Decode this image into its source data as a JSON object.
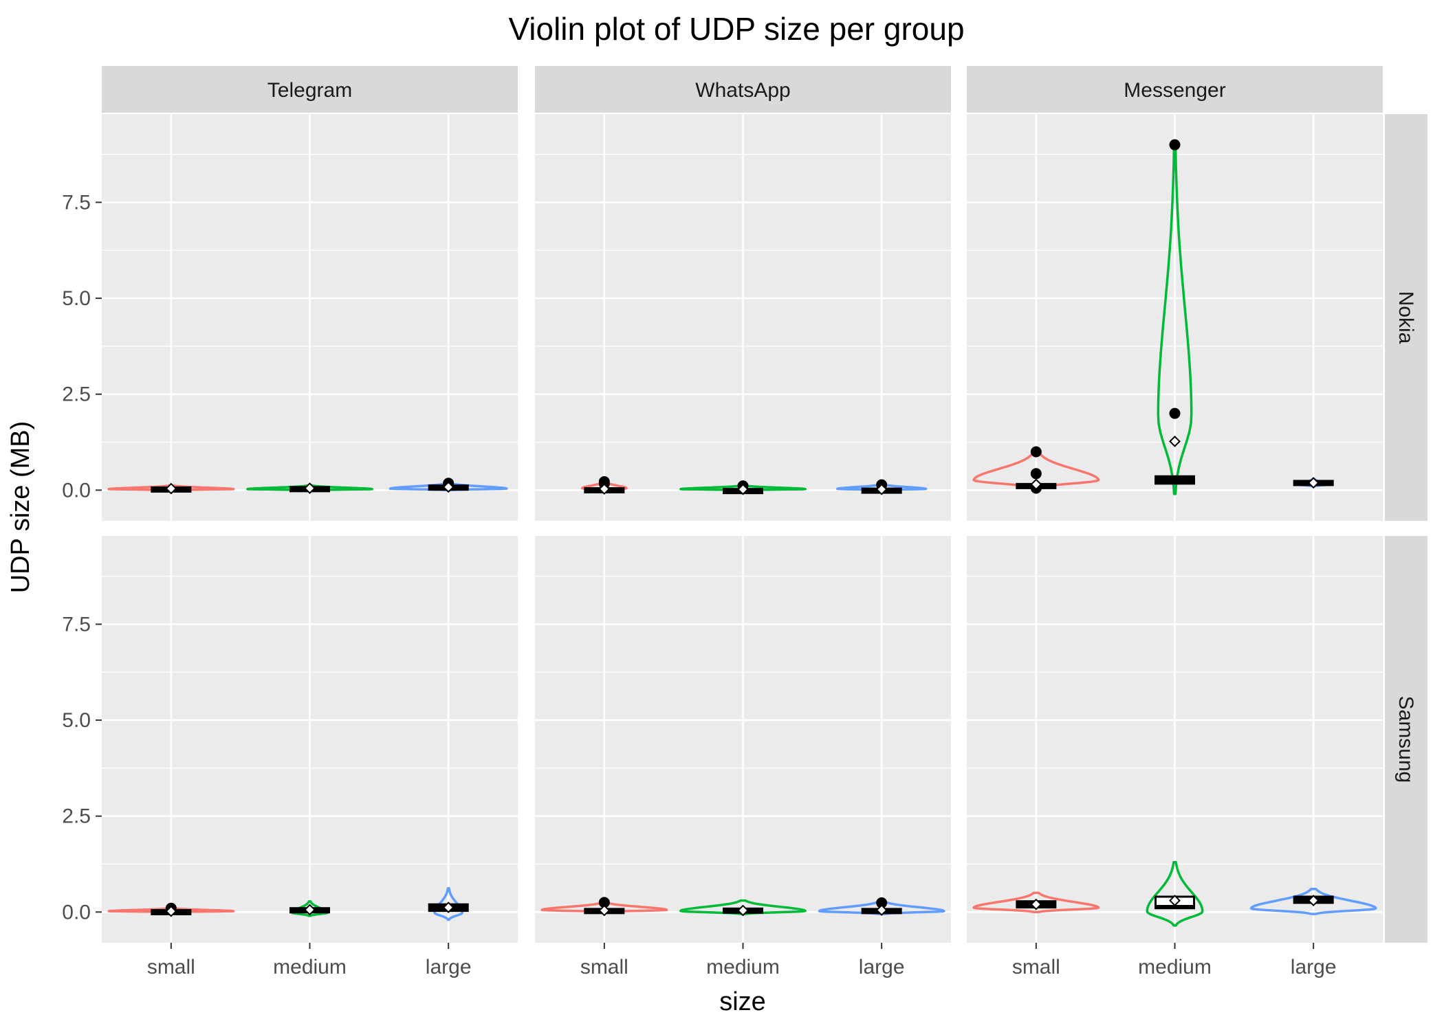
{
  "chart_data": {
    "type": "violin",
    "title": "Violin plot of UDP size per group",
    "xlabel": "size",
    "ylabel": "UDP size (MB)",
    "categories": [
      "small",
      "medium",
      "large"
    ],
    "ylim": [
      -0.8,
      9.8
    ],
    "yticks": [
      0.0,
      2.5,
      5.0,
      7.5
    ],
    "ytick_labels": [
      "0.0",
      "2.5",
      "5.0",
      "7.5"
    ],
    "grid": true,
    "facet_cols": [
      "Telegram",
      "WhatsApp",
      "Messenger"
    ],
    "facet_rows": [
      "Nokia",
      "Samsung"
    ],
    "colors": {
      "small": "#F8766D",
      "medium": "#00BA38",
      "large": "#619CFF",
      "panel_bg": "#EBEBEB",
      "strip_bg": "#D9D9D9",
      "grid": "#FFFFFF"
    },
    "panels": [
      {
        "app": "Telegram",
        "device": "Nokia",
        "groups": [
          {
            "category": "small",
            "violin_min": 0.0,
            "violin_max": 0.12,
            "violin_width": 0.45,
            "q1": 0.01,
            "median": 0.03,
            "q3": 0.07,
            "mean": 0.04,
            "outliers": []
          },
          {
            "category": "medium",
            "violin_min": 0.0,
            "violin_max": 0.12,
            "violin_width": 0.45,
            "q1": 0.03,
            "median": 0.05,
            "q3": 0.08,
            "mean": 0.05,
            "outliers": []
          },
          {
            "category": "large",
            "violin_min": 0.0,
            "violin_max": 0.18,
            "violin_width": 0.42,
            "q1": 0.03,
            "median": 0.07,
            "q3": 0.12,
            "mean": 0.08,
            "outliers": [
              0.18
            ]
          }
        ]
      },
      {
        "app": "WhatsApp",
        "device": "Nokia",
        "groups": [
          {
            "category": "small",
            "violin_min": 0.0,
            "violin_max": 0.22,
            "violin_width": 0.16,
            "q1": 0.01,
            "median": 0.02,
            "q3": 0.05,
            "mean": 0.03,
            "outliers": [
              0.22,
              0.17
            ]
          },
          {
            "category": "medium",
            "violin_min": 0.0,
            "violin_max": 0.12,
            "violin_width": 0.45,
            "q1": 0.0,
            "median": 0.01,
            "q3": 0.03,
            "mean": 0.02,
            "outliers": [
              0.11
            ]
          },
          {
            "category": "large",
            "violin_min": 0.0,
            "violin_max": 0.15,
            "violin_width": 0.32,
            "q1": 0.0,
            "median": 0.01,
            "q3": 0.04,
            "mean": 0.02,
            "outliers": [
              0.14
            ]
          }
        ]
      },
      {
        "app": "Messenger",
        "device": "Nokia",
        "groups": [
          {
            "category": "small",
            "violin_min": 0.05,
            "violin_max": 1.0,
            "violin_width": 0.45,
            "q1": 0.08,
            "median": 0.12,
            "q3": 0.16,
            "mean": 0.15,
            "outliers": [
              1.0,
              0.43,
              0.05
            ]
          },
          {
            "category": "medium",
            "violin_min": -0.1,
            "violin_max": 9.1,
            "violin_width": 0.12,
            "q1": 0.17,
            "median": 0.27,
            "q3": 0.36,
            "mean": 1.27,
            "outliers": [
              9.0,
              2.0
            ]
          },
          {
            "category": "large",
            "violin_min": 0.1,
            "violin_max": 0.3,
            "violin_width": 0.1,
            "q1": 0.15,
            "median": 0.19,
            "q3": 0.24,
            "mean": 0.19,
            "outliers": []
          }
        ]
      },
      {
        "app": "Telegram",
        "device": "Samsung",
        "groups": [
          {
            "category": "small",
            "violin_min": 0.0,
            "violin_max": 0.1,
            "violin_width": 0.45,
            "q1": 0.0,
            "median": 0.02,
            "q3": 0.05,
            "mean": 0.02,
            "outliers": [
              0.1
            ]
          },
          {
            "category": "medium",
            "violin_min": -0.1,
            "violin_max": 0.28,
            "violin_width": 0.13,
            "q1": 0.02,
            "median": 0.05,
            "q3": 0.1,
            "mean": 0.06,
            "outliers": []
          },
          {
            "category": "large",
            "violin_min": -0.2,
            "violin_max": 0.62,
            "violin_width": 0.1,
            "q1": 0.03,
            "median": 0.1,
            "q3": 0.2,
            "mean": 0.12,
            "outliers": []
          }
        ]
      },
      {
        "app": "WhatsApp",
        "device": "Samsung",
        "groups": [
          {
            "category": "small",
            "violin_min": 0.0,
            "violin_max": 0.25,
            "violin_width": 0.45,
            "q1": 0.0,
            "median": 0.03,
            "q3": 0.08,
            "mean": 0.04,
            "outliers": [
              0.25
            ]
          },
          {
            "category": "medium",
            "violin_min": -0.05,
            "violin_max": 0.3,
            "violin_width": 0.45,
            "q1": 0.0,
            "median": 0.03,
            "q3": 0.09,
            "mean": 0.04,
            "outliers": []
          },
          {
            "category": "large",
            "violin_min": -0.05,
            "violin_max": 0.28,
            "violin_width": 0.45,
            "q1": 0.0,
            "median": 0.03,
            "q3": 0.08,
            "mean": 0.05,
            "outliers": [
              0.24
            ]
          }
        ]
      },
      {
        "app": "Messenger",
        "device": "Samsung",
        "groups": [
          {
            "category": "small",
            "violin_min": 0.0,
            "violin_max": 0.5,
            "violin_width": 0.45,
            "q1": 0.12,
            "median": 0.16,
            "q3": 0.28,
            "mean": 0.2,
            "outliers": []
          },
          {
            "category": "medium",
            "violin_min": -0.35,
            "violin_max": 1.3,
            "violin_width": 0.2,
            "q1": 0.1,
            "median": 0.15,
            "q3": 0.4,
            "mean": 0.3,
            "outliers": []
          },
          {
            "category": "large",
            "violin_min": -0.05,
            "violin_max": 0.6,
            "violin_width": 0.45,
            "q1": 0.24,
            "median": 0.32,
            "q3": 0.4,
            "mean": 0.3,
            "outliers": []
          }
        ]
      }
    ]
  }
}
